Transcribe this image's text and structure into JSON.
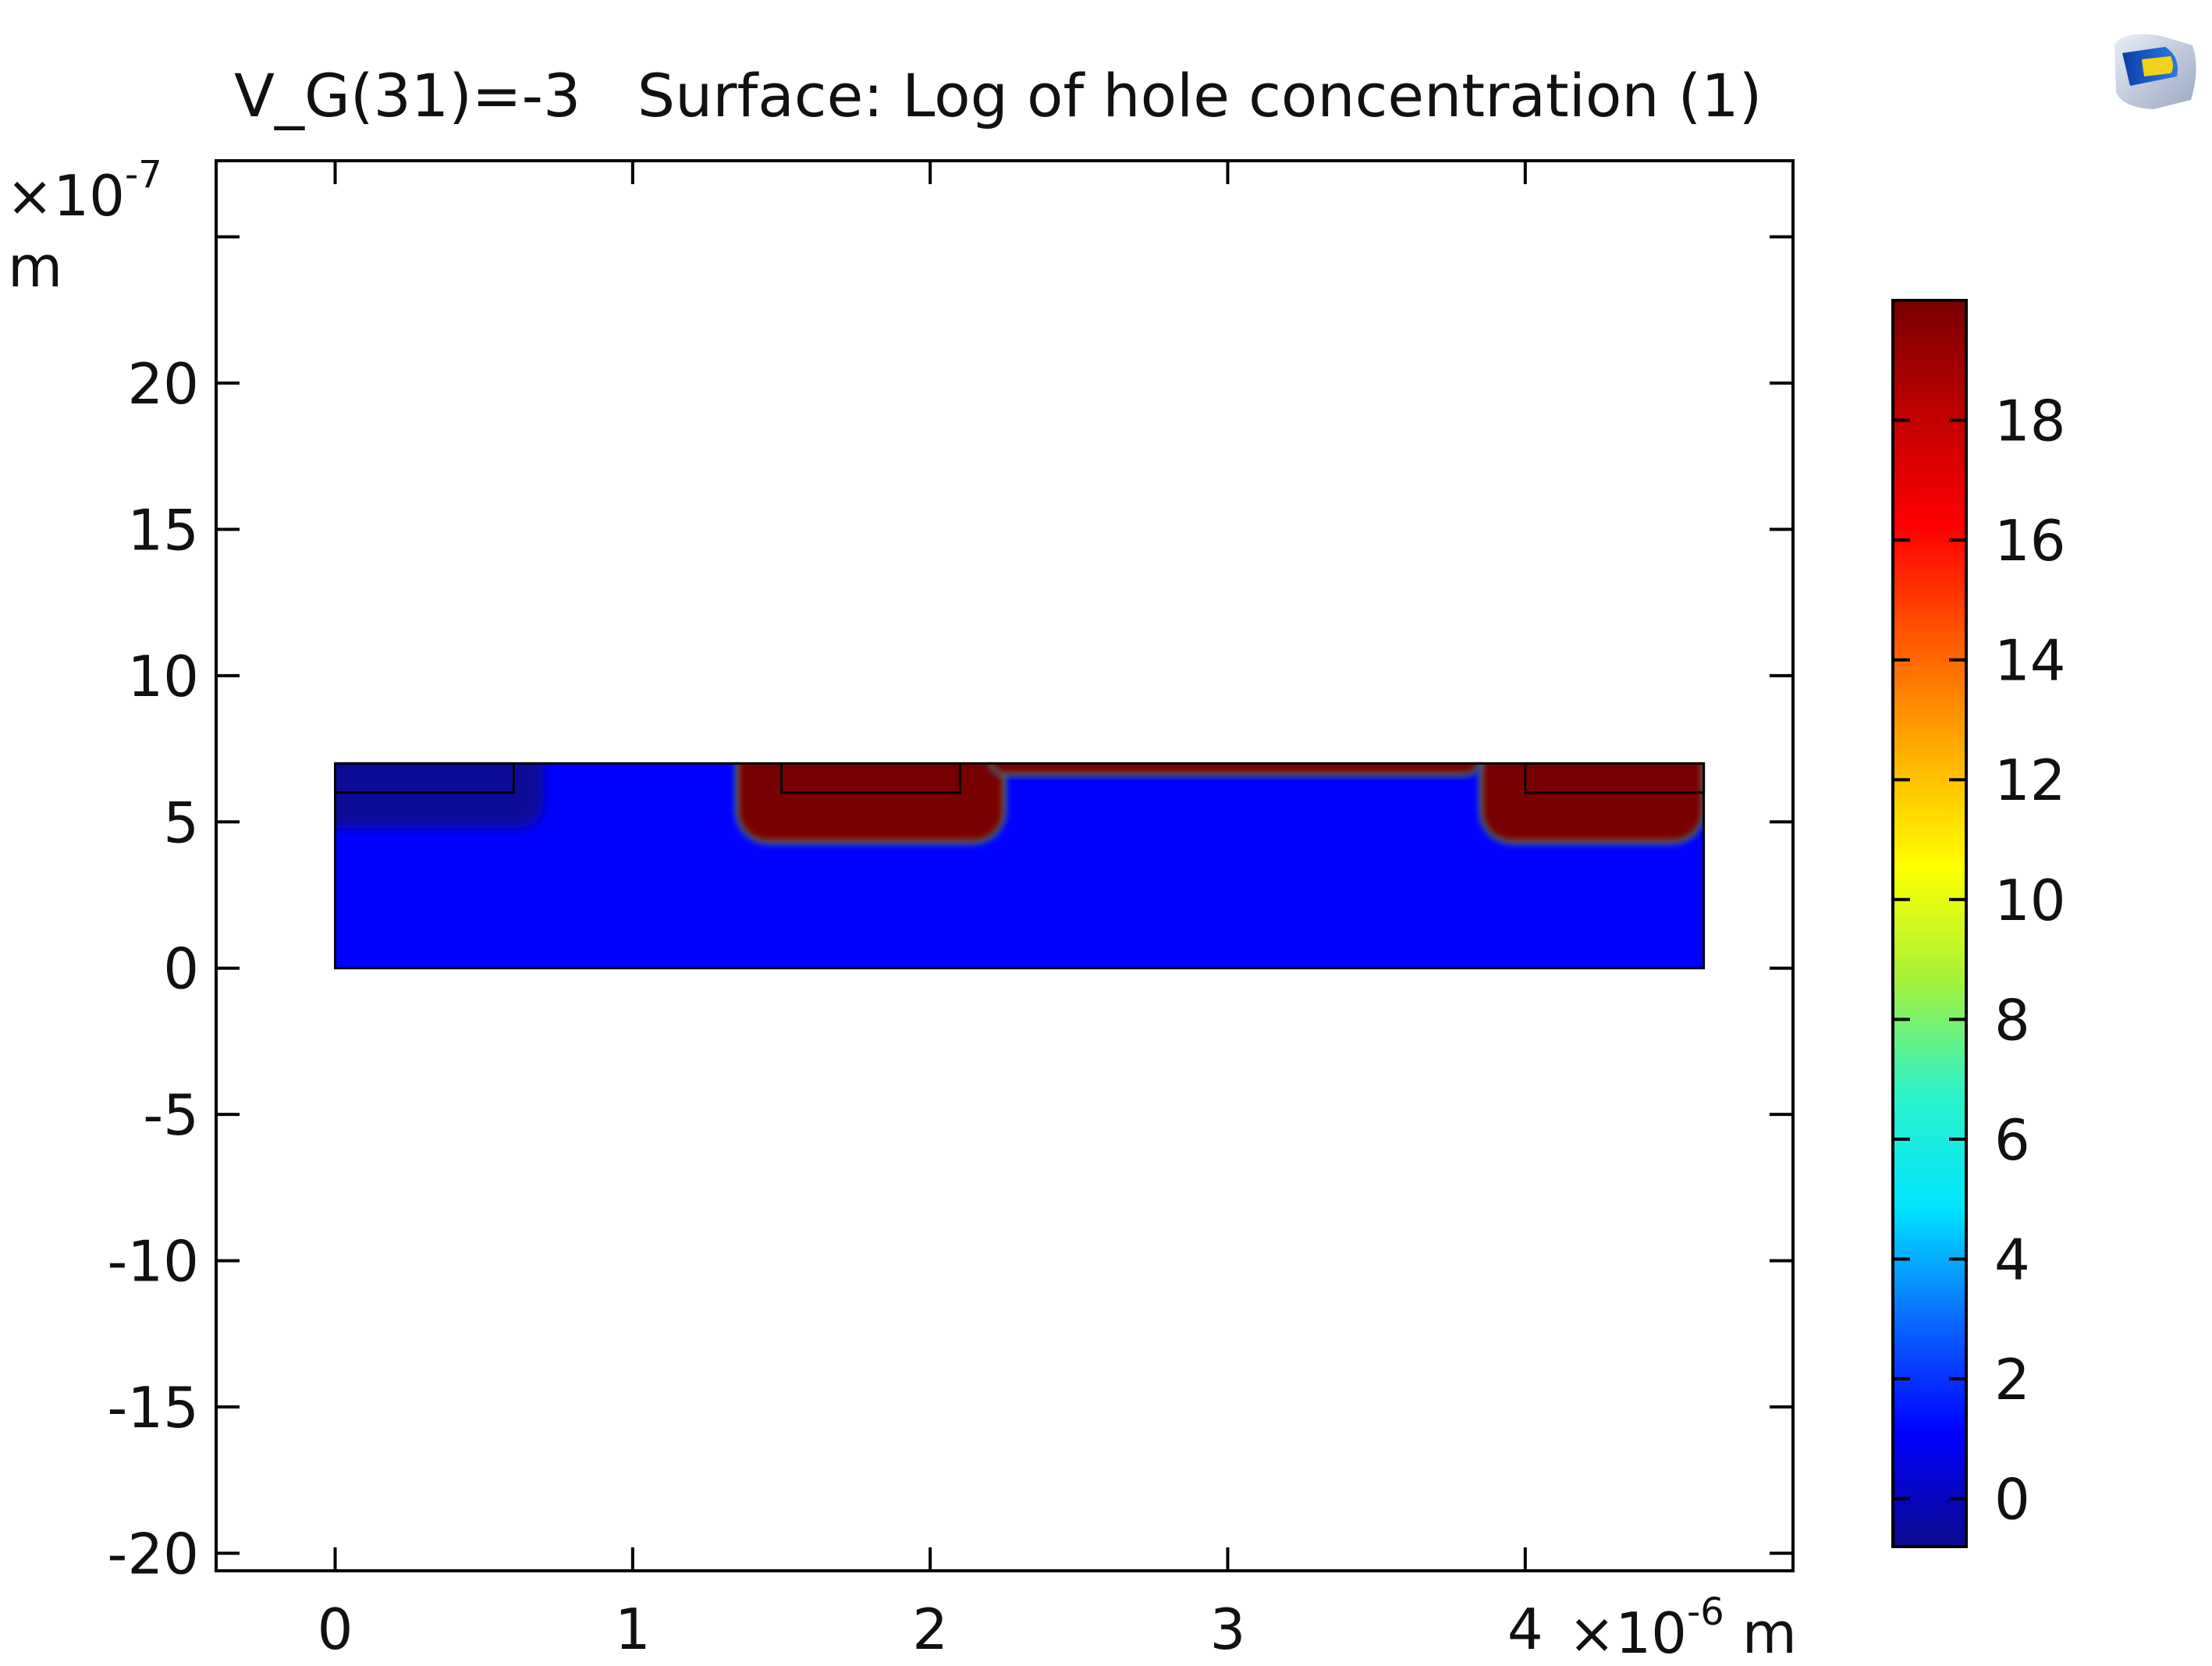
{
  "header": {
    "title": "V_G(31)=-3   Surface: Log of hole concentration (1)"
  },
  "axes": {
    "y_exponent_base": "×10",
    "y_exponent_power": "-7",
    "y_unit": "m",
    "x_exponent_base": "×10",
    "x_exponent_power": "-6",
    "x_unit": "m"
  },
  "logo": {
    "icon": "comsol-logo-icon"
  },
  "chart_data": {
    "type": "heatmap",
    "title": "V_G(31)=-3   Surface: Log of hole concentration (1)",
    "x_scale": "×10^-6 m",
    "y_scale": "×10^-7 m",
    "xlim": [
      -0.4,
      4.9
    ],
    "ylim": [
      -20.6,
      27.6
    ],
    "x_ticks": [
      0,
      1,
      2,
      3,
      4
    ],
    "x_tick_labels": [
      "0",
      "1",
      "2",
      "3",
      "4"
    ],
    "y_ticks": [
      -20,
      -15,
      -10,
      -5,
      0,
      5,
      10,
      15,
      20
    ],
    "y_tick_labels": [
      "-20",
      "-15",
      "-10",
      "-5",
      "0",
      "5",
      "10",
      "15",
      "20"
    ],
    "domain": {
      "x": [
        0,
        4.6
      ],
      "y": [
        0,
        7
      ]
    },
    "regions": [
      {
        "x": [
          0,
          0.6
        ],
        "y": [
          6,
          7
        ]
      },
      {
        "x": [
          1.5,
          2.1
        ],
        "y": [
          6,
          7
        ]
      },
      {
        "x": [
          4.0,
          4.6
        ],
        "y": [
          6,
          7
        ]
      }
    ],
    "field": {
      "background": 1.5,
      "source_well": {
        "x": [
          1.35,
          2.25
        ],
        "y": [
          4.3,
          7
        ],
        "value": 19.5
      },
      "surface_layer": {
        "x": [
          2.2,
          3.85
        ],
        "y": [
          6.6,
          7
        ],
        "value": 19.5
      },
      "drain_well": {
        "x": [
          3.85,
          4.6
        ],
        "y": [
          4.3,
          7
        ],
        "value": 19.5
      },
      "depleted_corner": {
        "x": [
          0,
          0.7
        ],
        "y": [
          4.8,
          7
        ],
        "value": 0
      }
    },
    "colorbar": {
      "min": -0.8,
      "max": 20,
      "ticks": [
        0,
        2,
        4,
        6,
        8,
        10,
        12,
        14,
        16,
        18
      ],
      "tick_labels": [
        "0",
        "2",
        "4",
        "6",
        "8",
        "10",
        "12",
        "14",
        "16",
        "18"
      ],
      "colormap": "rainbow",
      "colors": [
        "#0a0a8c",
        "#0000ff",
        "#0a6aff",
        "#00e6ff",
        "#2df2c8",
        "#a6f23a",
        "#ffff00",
        "#ffb000",
        "#ff5a00",
        "#ff0000",
        "#c00000",
        "#780000"
      ]
    }
  }
}
